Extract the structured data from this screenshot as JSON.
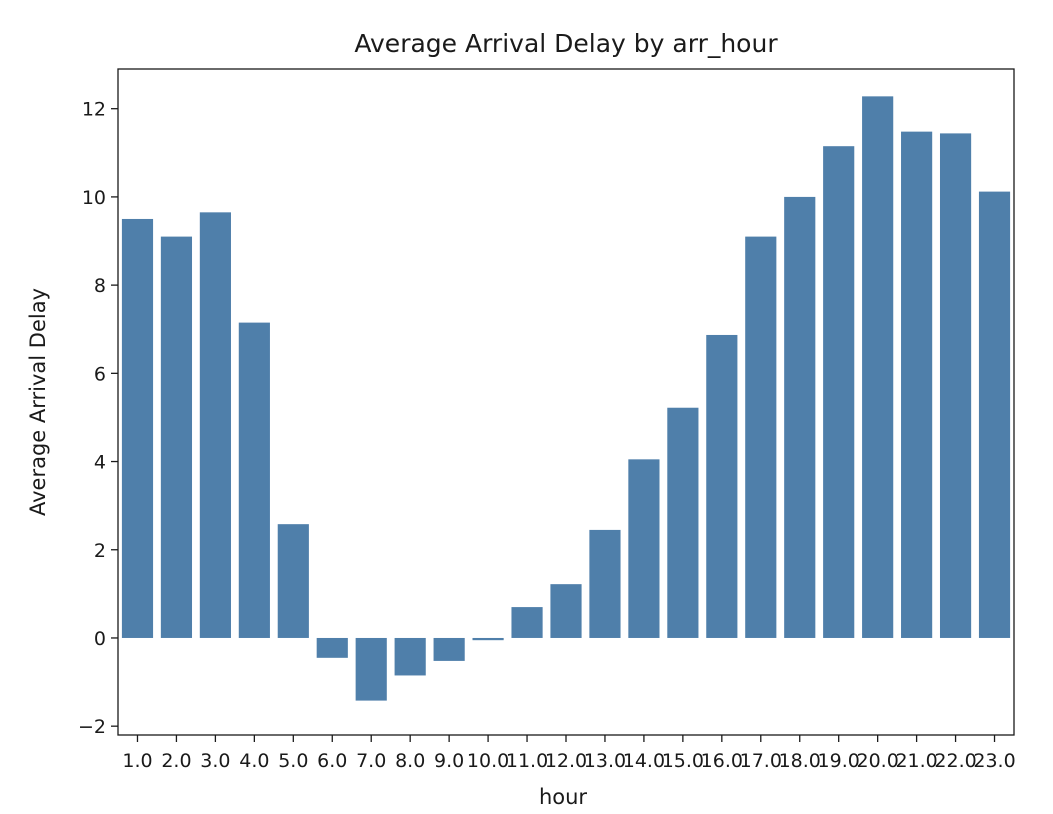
{
  "chart_data": {
    "type": "bar",
    "title": "Average Arrival Delay by arr_hour",
    "xlabel": "hour",
    "ylabel": "Average Arrival Delay",
    "categories": [
      "1.0",
      "2.0",
      "3.0",
      "4.0",
      "5.0",
      "6.0",
      "7.0",
      "8.0",
      "9.0",
      "10.0",
      "11.0",
      "12.0",
      "13.0",
      "14.0",
      "15.0",
      "16.0",
      "17.0",
      "18.0",
      "19.0",
      "20.0",
      "21.0",
      "22.0",
      "23.0"
    ],
    "values": [
      9.5,
      9.1,
      9.65,
      7.15,
      2.58,
      -0.45,
      -1.42,
      -0.85,
      -0.52,
      -0.05,
      0.7,
      1.22,
      2.45,
      4.05,
      5.22,
      6.87,
      9.1,
      10.0,
      11.15,
      12.28,
      11.48,
      11.44,
      10.12
    ],
    "yticks": [
      -2,
      0,
      2,
      4,
      6,
      8,
      10,
      12
    ],
    "ylim": [
      -2.2,
      12.9
    ],
    "grid": false,
    "bar_color": "#4f7faa"
  }
}
